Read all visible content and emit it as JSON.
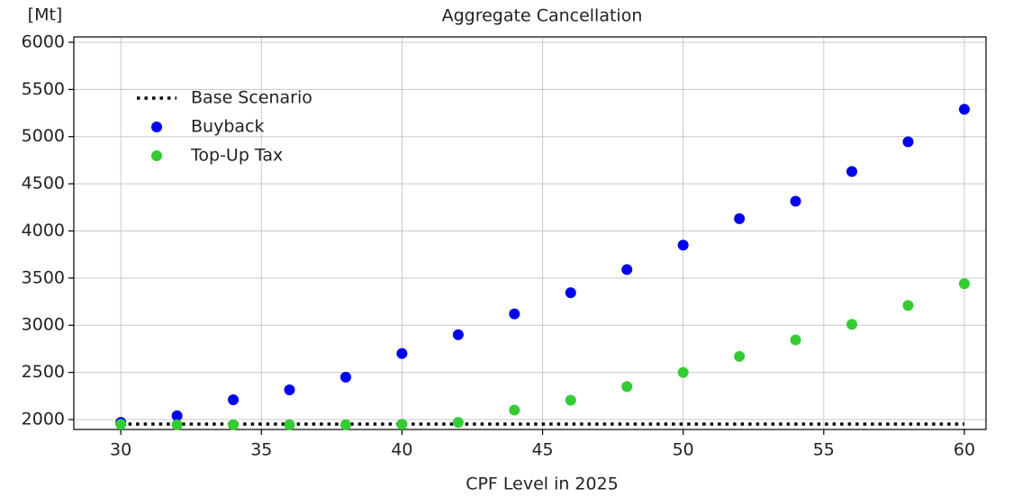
{
  "chart_data": {
    "type": "scatter",
    "title": "Aggregate Cancellation",
    "y_unit": "[Mt]",
    "x_label": "CPF Level in 2025",
    "xlim": [
      28.33,
      60.77
    ],
    "ylim": [
      1895,
      6057
    ],
    "xticks": [
      30,
      35,
      40,
      45,
      50,
      55,
      60
    ],
    "yticks": [
      2000,
      2500,
      3000,
      3500,
      4000,
      4500,
      5000,
      5500,
      6000
    ],
    "grid": true,
    "legend": "upper left",
    "series": [
      {
        "name": "Base Scenario",
        "type": "line",
        "style": "dotted",
        "color": "#000000",
        "x": [
          30,
          60
        ],
        "values": [
          1952,
          1952
        ]
      },
      {
        "name": "Buyback",
        "type": "scatter",
        "color": "#0000ee",
        "x": [
          30,
          32,
          34,
          36,
          38,
          40,
          42,
          44,
          46,
          48,
          50,
          52,
          54,
          56,
          58,
          60
        ],
        "values": [
          1970,
          2040,
          2210,
          2315,
          2450,
          2700,
          2900,
          3120,
          3345,
          3590,
          3850,
          4130,
          4315,
          4630,
          4945,
          5290
        ]
      },
      {
        "name": "Top-Up Tax",
        "type": "scatter",
        "color": "#33cc33",
        "x": [
          30,
          32,
          34,
          36,
          38,
          40,
          42,
          44,
          46,
          48,
          50,
          52,
          54,
          56,
          58,
          60
        ],
        "values": [
          1950,
          1945,
          1945,
          1945,
          1945,
          1950,
          1970,
          2100,
          2205,
          2350,
          2500,
          2670,
          2845,
          3010,
          3210,
          3440
        ]
      }
    ]
  }
}
